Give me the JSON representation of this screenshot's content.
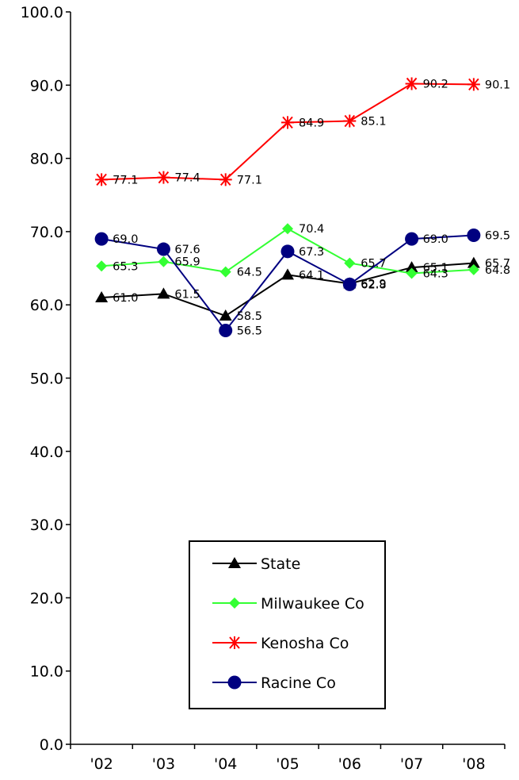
{
  "chart_data": {
    "type": "line",
    "title": "",
    "xlabel": "",
    "ylabel": "",
    "categories": [
      "'02",
      "'03",
      "'04",
      "'05",
      "'06",
      "'07",
      "'08"
    ],
    "ylim": [
      0,
      100
    ],
    "y_ticks": [
      "0.0",
      "10.0",
      "20.0",
      "30.0",
      "40.0",
      "50.0",
      "60.0",
      "70.0",
      "80.0",
      "90.0",
      "100.0"
    ],
    "grid": false,
    "legend_position": "bottom-center",
    "series": [
      {
        "name": "State",
        "marker": "triangle",
        "color": "#000000",
        "values": [
          61.0,
          61.5,
          58.5,
          64.1,
          62.9,
          65.1,
          65.7
        ]
      },
      {
        "name": "Milwaukee Co",
        "marker": "diamond",
        "color": "#33ff33",
        "values": [
          65.3,
          65.9,
          64.5,
          70.4,
          65.7,
          64.3,
          64.8
        ]
      },
      {
        "name": "Kenosha Co",
        "marker": "asterisk",
        "color": "#ff0000",
        "values": [
          77.1,
          77.4,
          77.1,
          84.9,
          85.1,
          90.2,
          90.1
        ]
      },
      {
        "name": "Racine Co",
        "marker": "circle",
        "color": "#000080",
        "values": [
          69.0,
          67.6,
          56.5,
          67.3,
          62.8,
          69.0,
          69.5
        ]
      }
    ]
  }
}
